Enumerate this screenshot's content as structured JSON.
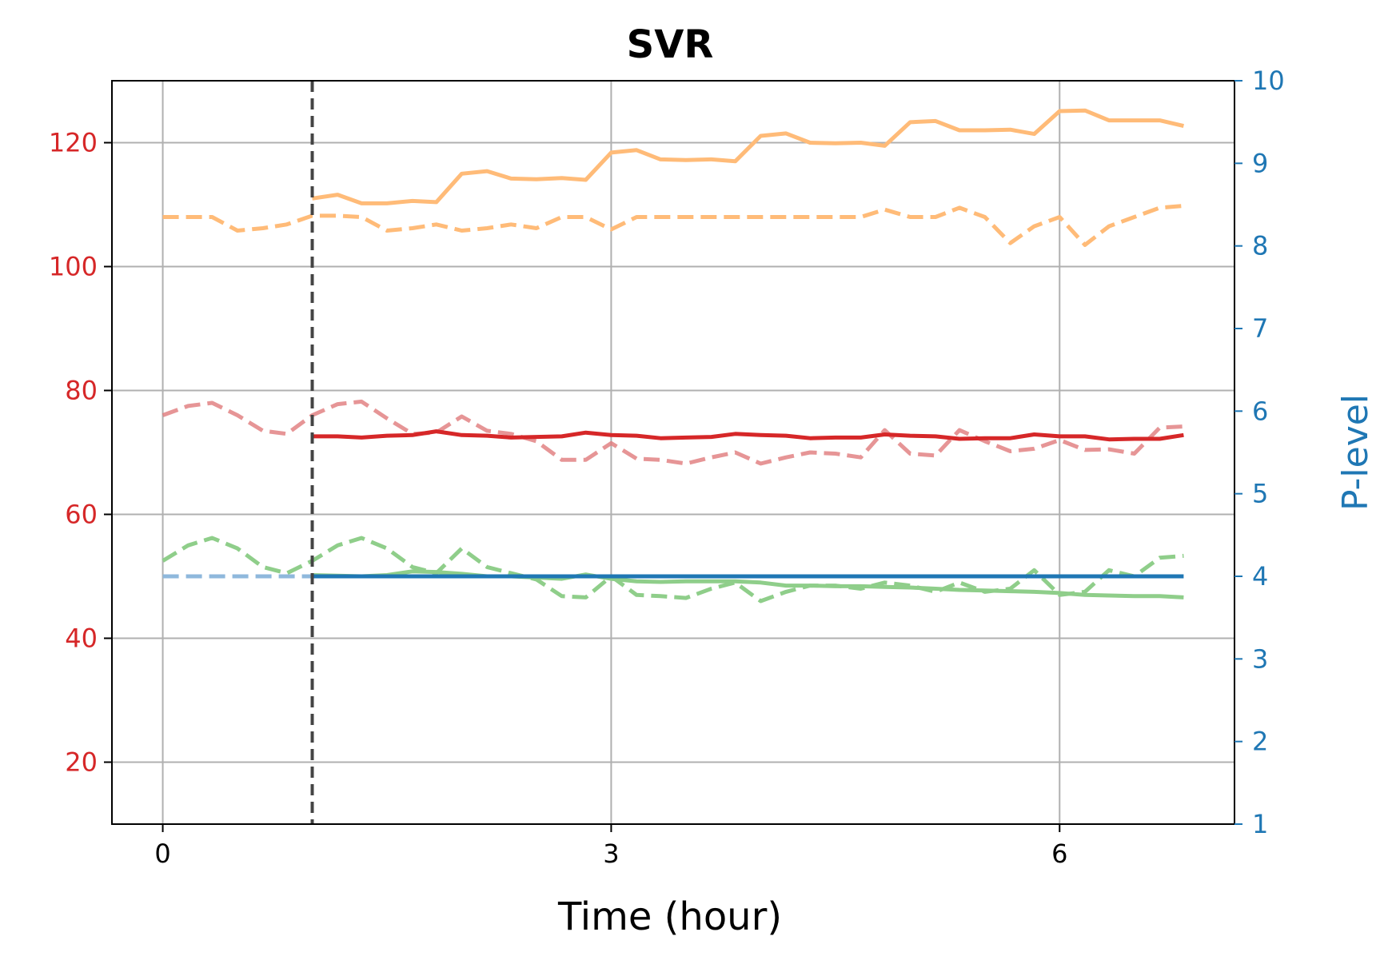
{
  "chart_data": {
    "type": "line",
    "title": "SVR",
    "xlabel": "Time (hour)",
    "ylabel_left": "",
    "ylabel_right": "P-level",
    "xlim": [
      -0.34,
      7.17
    ],
    "ylim_left": [
      10,
      130
    ],
    "ylim_right": [
      1,
      10
    ],
    "x_ticks": [
      0,
      3,
      6
    ],
    "y_left_ticks": [
      20,
      40,
      60,
      80,
      100,
      120
    ],
    "y_right_ticks": [
      1,
      2,
      3,
      4,
      5,
      6,
      7,
      8,
      9,
      10
    ],
    "grid": true,
    "left_axis_color": "#d62728",
    "right_axis_color": "#1f77b4",
    "vline": {
      "x": 1,
      "style": "dashed",
      "color": "#444444"
    },
    "series": [
      {
        "axis": "left",
        "color": "#ffbb78",
        "style": "dashed",
        "opacity": 1,
        "x": [
          0,
          0.17,
          0.33,
          0.5,
          0.67,
          0.83,
          1,
          1.17,
          1.33,
          1.5,
          1.67,
          1.83,
          2,
          2.17,
          2.33,
          2.5,
          2.67,
          2.83,
          3,
          3.17,
          3.33,
          3.5,
          3.67,
          3.83,
          4,
          4.17,
          4.33,
          4.5,
          4.67,
          4.83,
          5,
          5.17,
          5.33,
          5.5,
          5.67,
          5.83,
          6,
          6.17,
          6.33,
          6.5,
          6.67,
          6.83
        ],
        "y": [
          108,
          108,
          108,
          105.8,
          106.2,
          106.8,
          108.2,
          108.2,
          108,
          105.8,
          106.2,
          106.8,
          105.8,
          106.2,
          106.8,
          106.2,
          108,
          108,
          106,
          108,
          108,
          108,
          108,
          108,
          108,
          108,
          108,
          108,
          108,
          109.2,
          108,
          108,
          109.5,
          108,
          103.8,
          106.5,
          108,
          103.5,
          106.5,
          108,
          109.5,
          109.8
        ]
      },
      {
        "axis": "left",
        "color": "#ffbb78",
        "style": "solid",
        "opacity": 1,
        "x": [
          1,
          1.17,
          1.33,
          1.5,
          1.67,
          1.83,
          2,
          2.17,
          2.33,
          2.5,
          2.67,
          2.83,
          3,
          3.17,
          3.33,
          3.5,
          3.67,
          3.83,
          4,
          4.17,
          4.33,
          4.5,
          4.67,
          4.83,
          5,
          5.17,
          5.33,
          5.5,
          5.67,
          5.83,
          6,
          6.17,
          6.33,
          6.5,
          6.67,
          6.83
        ],
        "y": [
          111,
          111.6,
          110.2,
          110.2,
          110.6,
          110.4,
          115,
          115.4,
          114.2,
          114.1,
          114.3,
          114,
          118.4,
          118.8,
          117.3,
          117.2,
          117.3,
          117,
          121.1,
          121.5,
          120,
          119.9,
          120,
          119.5,
          123.3,
          123.5,
          122,
          122,
          122.1,
          121.4,
          125.1,
          125.2,
          123.6,
          123.6,
          123.6,
          122.7
        ]
      },
      {
        "axis": "left",
        "color": "#e07a7c",
        "style": "dashed",
        "opacity": 0.8,
        "x": [
          0,
          0.17,
          0.33,
          0.5,
          0.67,
          0.83,
          1,
          1.17,
          1.33,
          1.5,
          1.67,
          1.83,
          2,
          2.17,
          2.33,
          2.5,
          2.67,
          2.83,
          3,
          3.17,
          3.33,
          3.5,
          3.67,
          3.83,
          4,
          4.17,
          4.33,
          4.5,
          4.67,
          4.83,
          5,
          5.17,
          5.33,
          5.5,
          5.67,
          5.83,
          6,
          6.17,
          6.33,
          6.5,
          6.67,
          6.83
        ],
        "y": [
          76,
          77.5,
          78,
          76,
          73.5,
          73,
          76,
          77.8,
          78.2,
          75.5,
          73,
          73.2,
          75.8,
          73.5,
          73,
          71.8,
          68.8,
          68.8,
          71.5,
          69,
          68.8,
          68.2,
          69.2,
          70,
          68.2,
          69.2,
          70,
          69.8,
          69.2,
          73.6,
          69.8,
          69.5,
          73.6,
          71.8,
          70.2,
          70.6,
          72,
          70.4,
          70.5,
          69.8,
          74,
          74.2
        ]
      },
      {
        "axis": "left",
        "color": "#d62728",
        "style": "solid",
        "opacity": 1,
        "x": [
          1,
          1.17,
          1.33,
          1.5,
          1.67,
          1.83,
          2,
          2.17,
          2.33,
          2.5,
          2.67,
          2.83,
          3,
          3.17,
          3.33,
          3.5,
          3.67,
          3.83,
          4,
          4.17,
          4.33,
          4.5,
          4.67,
          4.83,
          5,
          5.17,
          5.33,
          5.5,
          5.67,
          5.83,
          6,
          6.17,
          6.33,
          6.5,
          6.67,
          6.83
        ],
        "y": [
          72.6,
          72.6,
          72.4,
          72.7,
          72.8,
          73.4,
          72.8,
          72.7,
          72.4,
          72.5,
          72.6,
          73.2,
          72.8,
          72.7,
          72.3,
          72.4,
          72.5,
          73,
          72.8,
          72.7,
          72.3,
          72.4,
          72.4,
          72.9,
          72.7,
          72.6,
          72.2,
          72.3,
          72.3,
          72.9,
          72.6,
          72.6,
          72.1,
          72.2,
          72.2,
          72.8
        ]
      },
      {
        "axis": "left",
        "color": "#8fce8a",
        "style": "dashed",
        "opacity": 1,
        "x": [
          0,
          0.17,
          0.33,
          0.5,
          0.67,
          0.83,
          1,
          1.17,
          1.33,
          1.5,
          1.67,
          1.83,
          2,
          2.17,
          2.33,
          2.5,
          2.67,
          2.83,
          3,
          3.17,
          3.33,
          3.5,
          3.67,
          3.83,
          4,
          4.17,
          4.33,
          4.5,
          4.67,
          4.83,
          5,
          5.17,
          5.33,
          5.5,
          5.67,
          5.83,
          6,
          6.17,
          6.33,
          6.5,
          6.67,
          6.83
        ],
        "y": [
          52.5,
          55,
          56.2,
          54.5,
          51.5,
          50.5,
          52.5,
          55,
          56.2,
          54.5,
          51.5,
          50.5,
          54.5,
          51.5,
          50.5,
          49.5,
          46.8,
          46.6,
          50,
          47,
          46.8,
          46.5,
          48,
          49,
          46,
          47.5,
          48.5,
          48.5,
          48,
          49,
          48.5,
          47.5,
          49,
          47.5,
          48,
          51,
          47,
          47.5,
          51,
          50,
          53,
          53.3
        ]
      },
      {
        "axis": "left",
        "color": "#8fce8a",
        "style": "solid",
        "opacity": 1,
        "x": [
          1,
          1.17,
          1.33,
          1.5,
          1.67,
          1.83,
          2,
          2.17,
          2.33,
          2.5,
          2.67,
          2.83,
          3,
          3.17,
          3.33,
          3.5,
          3.67,
          3.83,
          4,
          4.17,
          4.33,
          4.5,
          4.67,
          4.83,
          5,
          5.17,
          5.33,
          5.5,
          5.67,
          5.83,
          6,
          6.17,
          6.33,
          6.5,
          6.67,
          6.83
        ],
        "y": [
          50.2,
          50.1,
          50,
          50.2,
          50.8,
          50.7,
          50.4,
          50,
          50,
          49.8,
          49.6,
          50.3,
          49.6,
          49.2,
          49.1,
          49.2,
          49.2,
          49.2,
          49,
          48.5,
          48.5,
          48.4,
          48.4,
          48.3,
          48.2,
          48,
          47.8,
          47.7,
          47.6,
          47.5,
          47.3,
          47,
          46.9,
          46.8,
          46.8,
          46.6
        ]
      },
      {
        "axis": "right",
        "color": "#8fb8dc",
        "style": "dashed",
        "opacity": 1,
        "x": [
          0,
          1
        ],
        "y": [
          4,
          4
        ]
      },
      {
        "axis": "right",
        "color": "#1f77b4",
        "style": "solid",
        "opacity": 1,
        "x": [
          1,
          1.17,
          1.33,
          1.5,
          1.67,
          1.83,
          2,
          2.17,
          2.33,
          2.5,
          2.67,
          2.83,
          3,
          3.17,
          3.33,
          3.5,
          3.67,
          3.83,
          4,
          4.17,
          4.33,
          4.5,
          4.67,
          4.83,
          5,
          5.17,
          5.33,
          5.5,
          5.67,
          5.83,
          6,
          6.17,
          6.33,
          6.5,
          6.67,
          6.83
        ],
        "y": [
          4,
          4,
          4,
          4,
          4,
          4,
          4,
          4,
          4,
          4,
          4,
          4,
          4,
          4,
          4,
          4,
          4,
          4,
          4,
          4,
          4,
          4,
          4,
          4,
          4,
          4,
          4,
          4,
          4,
          4,
          4,
          4,
          4,
          4,
          4,
          4
        ]
      }
    ]
  }
}
